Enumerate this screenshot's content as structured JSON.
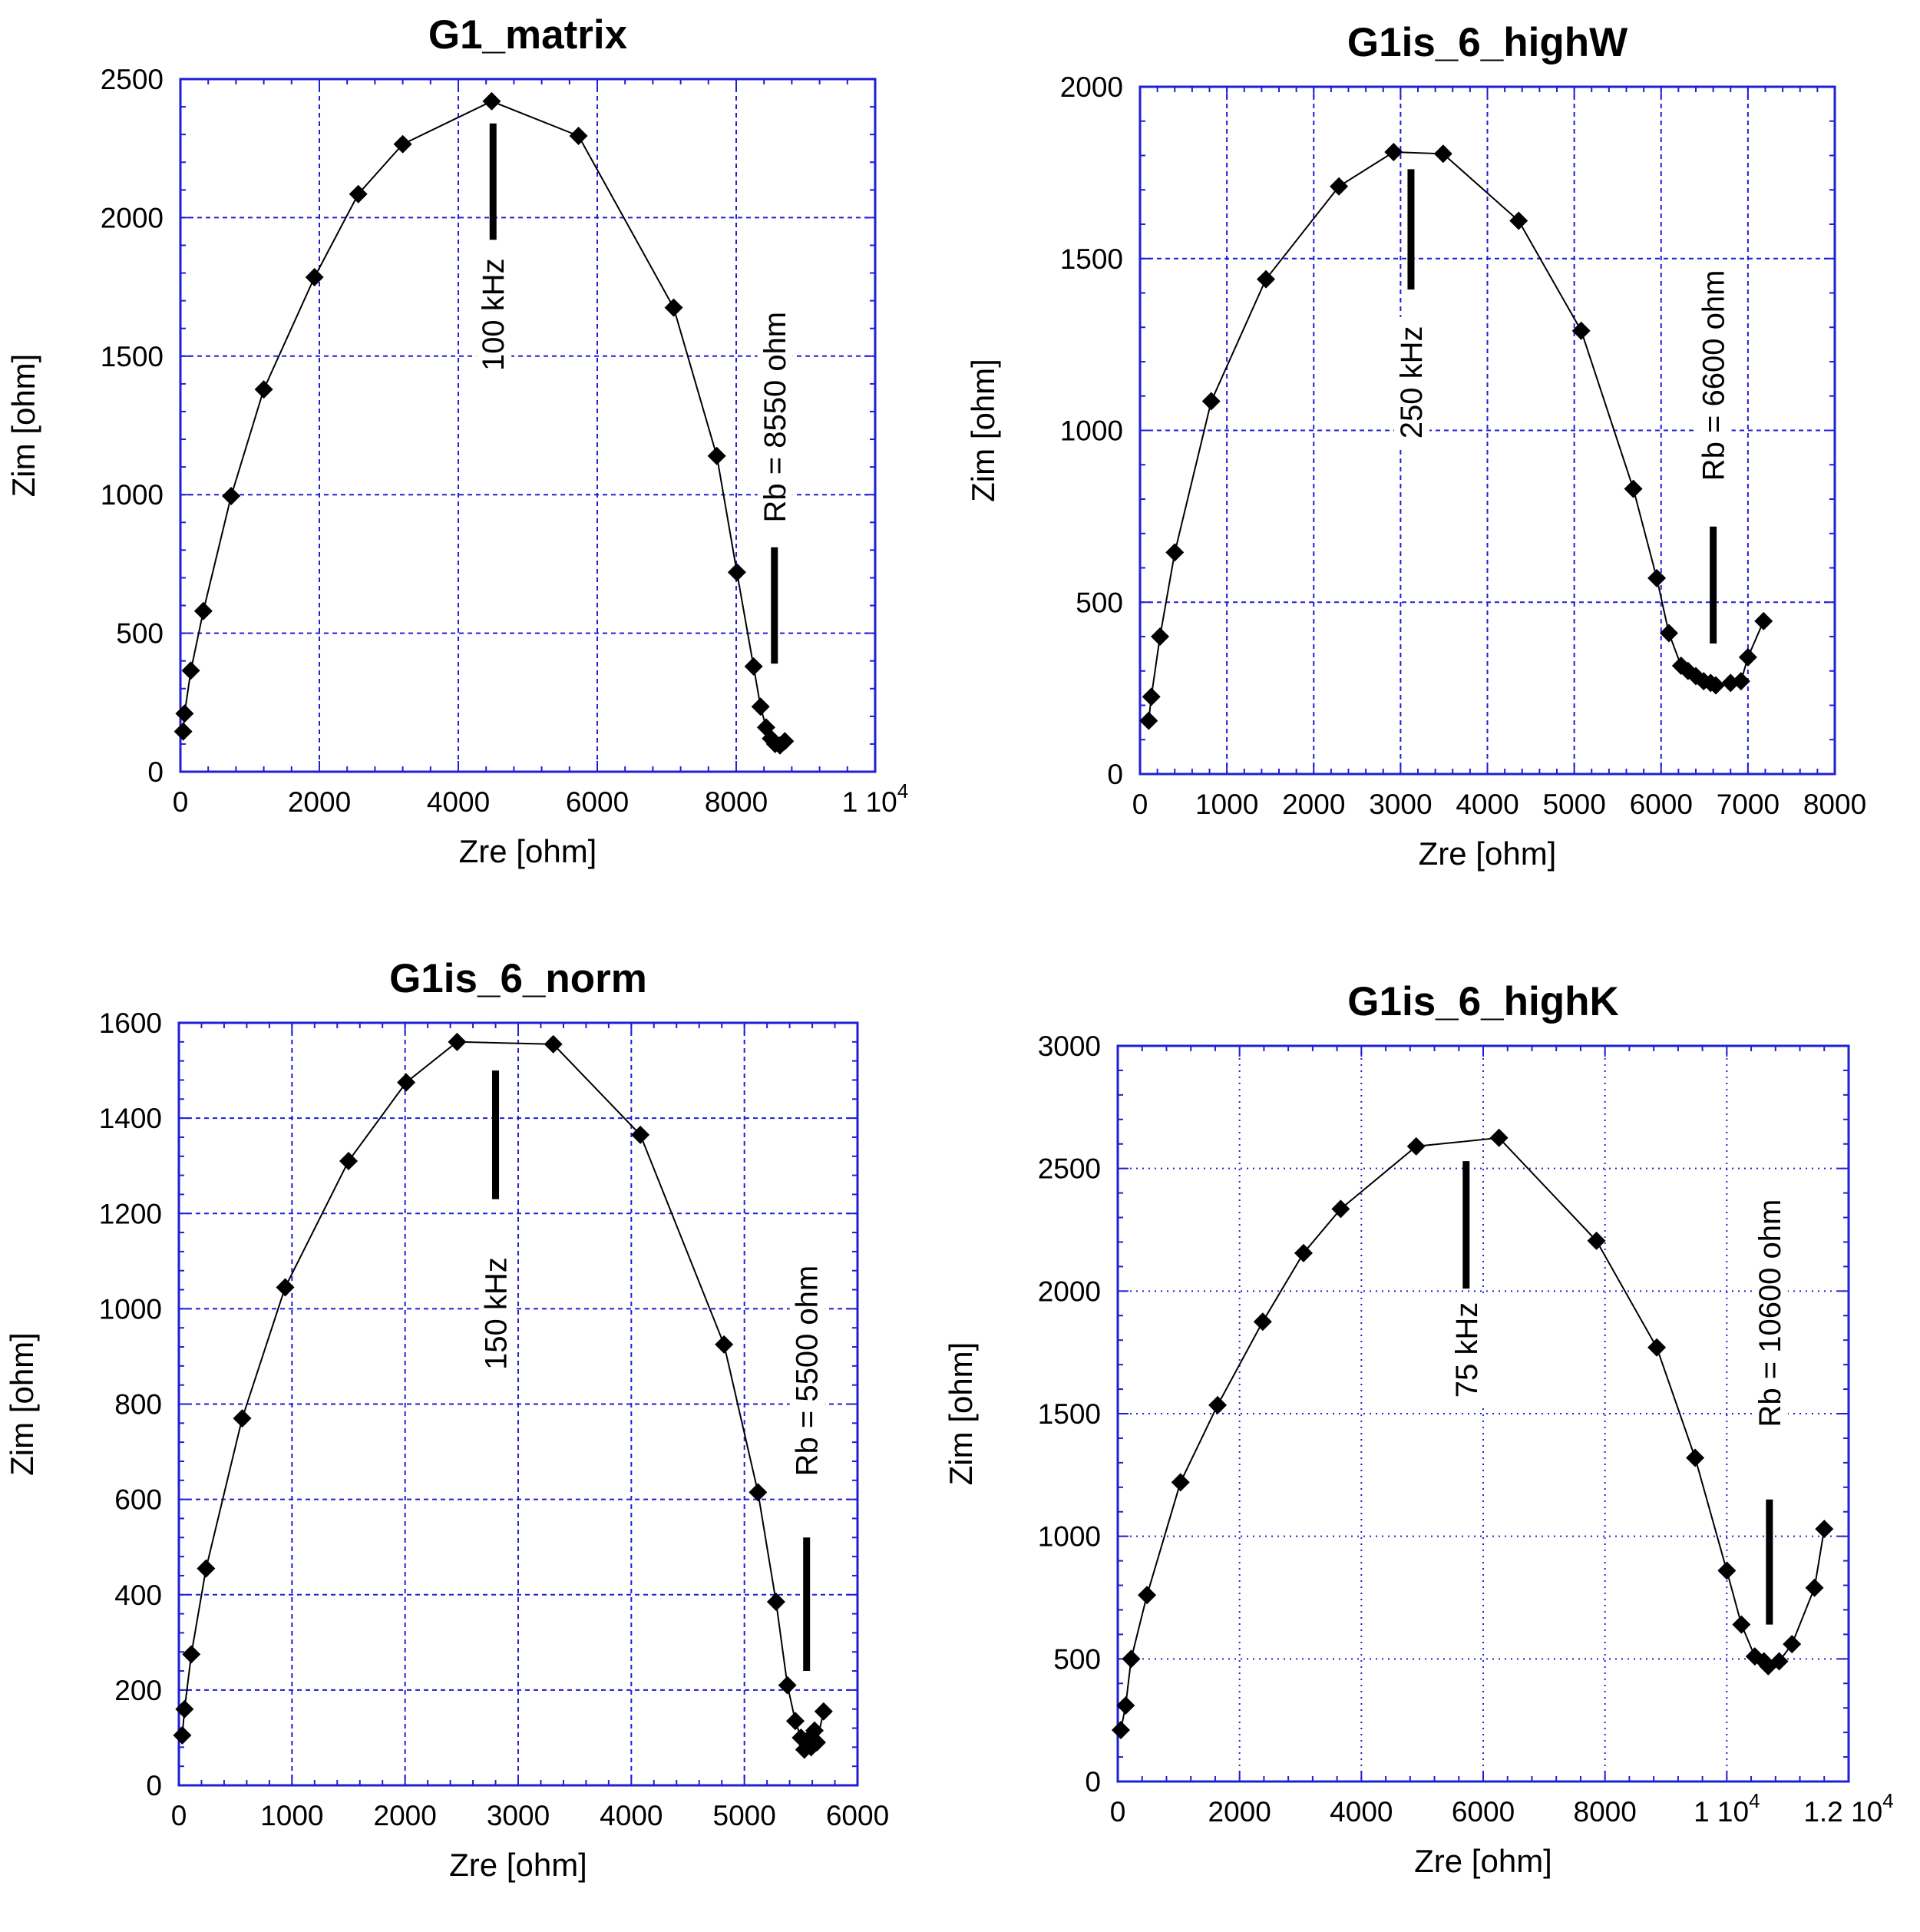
{
  "chart_data": [
    {
      "type": "scatter",
      "title": "G1_matrix",
      "xlabel": "Zre [ohm]",
      "ylabel": "Zim [ohm]",
      "xlim": [
        0,
        10000
      ],
      "ylim": [
        0,
        2500
      ],
      "grid": true,
      "xticks": [
        {
          "value": 0,
          "label": "0"
        },
        {
          "value": 2000,
          "label": "2000"
        },
        {
          "value": 4000,
          "label": "4000"
        },
        {
          "value": 6000,
          "label": "6000"
        },
        {
          "value": 8000,
          "label": "8000"
        },
        {
          "value": 10000,
          "label": "1 10",
          "sup": "4"
        }
      ],
      "yticks": [
        {
          "value": 0,
          "label": "0"
        },
        {
          "value": 500,
          "label": "500"
        },
        {
          "value": 1000,
          "label": "1000"
        },
        {
          "value": 1500,
          "label": "1500"
        },
        {
          "value": 2000,
          "label": "2000"
        },
        {
          "value": 2500,
          "label": "2500"
        }
      ],
      "series": [
        {
          "name": "G1_matrix",
          "marker": "diamond",
          "x": [
            40,
            60,
            150,
            330,
            730,
            1200,
            1930,
            2560,
            3200,
            4480,
            5730,
            7100,
            7720,
            8010,
            8250,
            8350,
            8430,
            8500,
            8560,
            8630,
            8700
          ],
          "y": [
            145,
            210,
            365,
            580,
            995,
            1380,
            1785,
            2085,
            2265,
            2420,
            2295,
            1675,
            1140,
            720,
            380,
            235,
            160,
            120,
            100,
            95,
            110
          ]
        }
      ],
      "annotations": [
        {
          "text": "100 kHz",
          "x": 4500,
          "bar_from": 1920,
          "bar_to": 2340,
          "text_center_y": 1650
        },
        {
          "text": "Rb = 8550 ohm",
          "x": 8550,
          "bar_from": 390,
          "bar_to": 810,
          "text_center_y": 1280
        }
      ]
    },
    {
      "type": "scatter",
      "title": "G1is_6_highW",
      "xlabel": "Zre [ohm]",
      "ylabel": "Zim [ohm]",
      "xlim": [
        0,
        8000
      ],
      "ylim": [
        0,
        2000
      ],
      "grid": true,
      "xticks": [
        {
          "value": 0,
          "label": "0"
        },
        {
          "value": 1000,
          "label": "1000"
        },
        {
          "value": 2000,
          "label": "2000"
        },
        {
          "value": 3000,
          "label": "3000"
        },
        {
          "value": 4000,
          "label": "4000"
        },
        {
          "value": 5000,
          "label": "5000"
        },
        {
          "value": 6000,
          "label": "6000"
        },
        {
          "value": 7000,
          "label": "7000"
        },
        {
          "value": 8000,
          "label": "8000"
        }
      ],
      "yticks": [
        {
          "value": 0,
          "label": "0"
        },
        {
          "value": 500,
          "label": "500"
        },
        {
          "value": 1000,
          "label": "1000"
        },
        {
          "value": 1500,
          "label": "1500"
        },
        {
          "value": 2000,
          "label": "2000"
        }
      ],
      "series": [
        {
          "name": "G1is_6_highW",
          "marker": "diamond",
          "x": [
            100,
            130,
            230,
            400,
            820,
            1450,
            2290,
            2920,
            3490,
            4360,
            5080,
            5680,
            5950,
            6090,
            6230,
            6310,
            6400,
            6490,
            6570,
            6630,
            6800,
            6920,
            7000,
            7180
          ],
          "y": [
            155,
            225,
            400,
            645,
            1085,
            1440,
            1710,
            1810,
            1805,
            1610,
            1290,
            830,
            570,
            410,
            315,
            300,
            285,
            270,
            265,
            258,
            265,
            270,
            340,
            445
          ]
        }
      ],
      "annotations": [
        {
          "text": "250 kHz",
          "x": 3120,
          "bar_from": 1410,
          "bar_to": 1760,
          "text_center_y": 1140
        },
        {
          "text": "Rb = 6600 ohm",
          "x": 6600,
          "bar_from": 380,
          "bar_to": 720,
          "text_center_y": 1160
        }
      ]
    },
    {
      "type": "scatter",
      "title": "G1is_6_norm",
      "xlabel": "Zre [ohm]",
      "ylabel": "Zim [ohm]",
      "xlim": [
        0,
        6000
      ],
      "ylim": [
        0,
        1600
      ],
      "grid": true,
      "xticks": [
        {
          "value": 0,
          "label": "0"
        },
        {
          "value": 1000,
          "label": "1000"
        },
        {
          "value": 2000,
          "label": "2000"
        },
        {
          "value": 3000,
          "label": "3000"
        },
        {
          "value": 4000,
          "label": "4000"
        },
        {
          "value": 5000,
          "label": "5000"
        },
        {
          "value": 6000,
          "label": "6000"
        }
      ],
      "yticks": [
        {
          "value": 0,
          "label": "0"
        },
        {
          "value": 200,
          "label": "200"
        },
        {
          "value": 400,
          "label": "400"
        },
        {
          "value": 600,
          "label": "600"
        },
        {
          "value": 800,
          "label": "800"
        },
        {
          "value": 1000,
          "label": "1000"
        },
        {
          "value": 1200,
          "label": "1200"
        },
        {
          "value": 1400,
          "label": "1400"
        },
        {
          "value": 1600,
          "label": "1600"
        }
      ],
      "series": [
        {
          "name": "G1is_6_norm",
          "marker": "diamond",
          "x": [
            30,
            50,
            110,
            240,
            560,
            940,
            1500,
            2010,
            2460,
            3310,
            4080,
            4820,
            5120,
            5280,
            5380,
            5450,
            5500,
            5530,
            5560,
            5590,
            5620,
            5640,
            5700
          ],
          "y": [
            105,
            160,
            275,
            455,
            770,
            1045,
            1310,
            1475,
            1560,
            1555,
            1365,
            925,
            615,
            385,
            210,
            135,
            100,
            75,
            95,
            80,
            115,
            90,
            155
          ]
        }
      ],
      "annotations": [
        {
          "text": "150 kHz",
          "x": 2800,
          "bar_from": 1230,
          "bar_to": 1500,
          "text_center_y": 990
        },
        {
          "text": "Rb = 5500 ohm",
          "x": 5550,
          "bar_from": 240,
          "bar_to": 520,
          "text_center_y": 870
        }
      ]
    },
    {
      "type": "scatter",
      "title": "G1is_6_highK",
      "xlabel": "Zre [ohm]",
      "ylabel": "Zim [ohm]",
      "xlim": [
        0,
        12000
      ],
      "ylim": [
        0,
        3000
      ],
      "grid": "dotted",
      "xticks": [
        {
          "value": 0,
          "label": "0"
        },
        {
          "value": 2000,
          "label": "2000"
        },
        {
          "value": 4000,
          "label": "4000"
        },
        {
          "value": 6000,
          "label": "6000"
        },
        {
          "value": 8000,
          "label": "8000"
        },
        {
          "value": 10000,
          "label": "1 10",
          "sup": "4"
        },
        {
          "value": 12000,
          "label": "1.2 10",
          "sup": "4"
        }
      ],
      "yticks": [
        {
          "value": 0,
          "label": "0"
        },
        {
          "value": 500,
          "label": "500"
        },
        {
          "value": 1000,
          "label": "1000"
        },
        {
          "value": 1500,
          "label": "1500"
        },
        {
          "value": 2000,
          "label": "2000"
        },
        {
          "value": 2500,
          "label": "2500"
        },
        {
          "value": 3000,
          "label": "3000"
        }
      ],
      "series": [
        {
          "name": "G1is_6_highK",
          "marker": "diamond",
          "x": [
            50,
            130,
            220,
            480,
            1030,
            1640,
            2380,
            3050,
            3660,
            4900,
            6260,
            7860,
            8850,
            9480,
            10000,
            10240,
            10460,
            10610,
            10680,
            10860,
            11070,
            11440,
            11600
          ],
          "y": [
            210,
            310,
            500,
            760,
            1220,
            1535,
            1875,
            2155,
            2335,
            2590,
            2625,
            2205,
            1770,
            1320,
            860,
            640,
            510,
            490,
            470,
            490,
            560,
            790,
            1030
          ]
        }
      ],
      "annotations": [
        {
          "text": "75 kHz",
          "x": 5720,
          "bar_from": 2010,
          "bar_to": 2530,
          "text_center_y": 1760
        },
        {
          "text": "Rb = 10600 ohm",
          "x": 10700,
          "bar_from": 640,
          "bar_to": 1150,
          "text_center_y": 1910
        }
      ]
    }
  ]
}
